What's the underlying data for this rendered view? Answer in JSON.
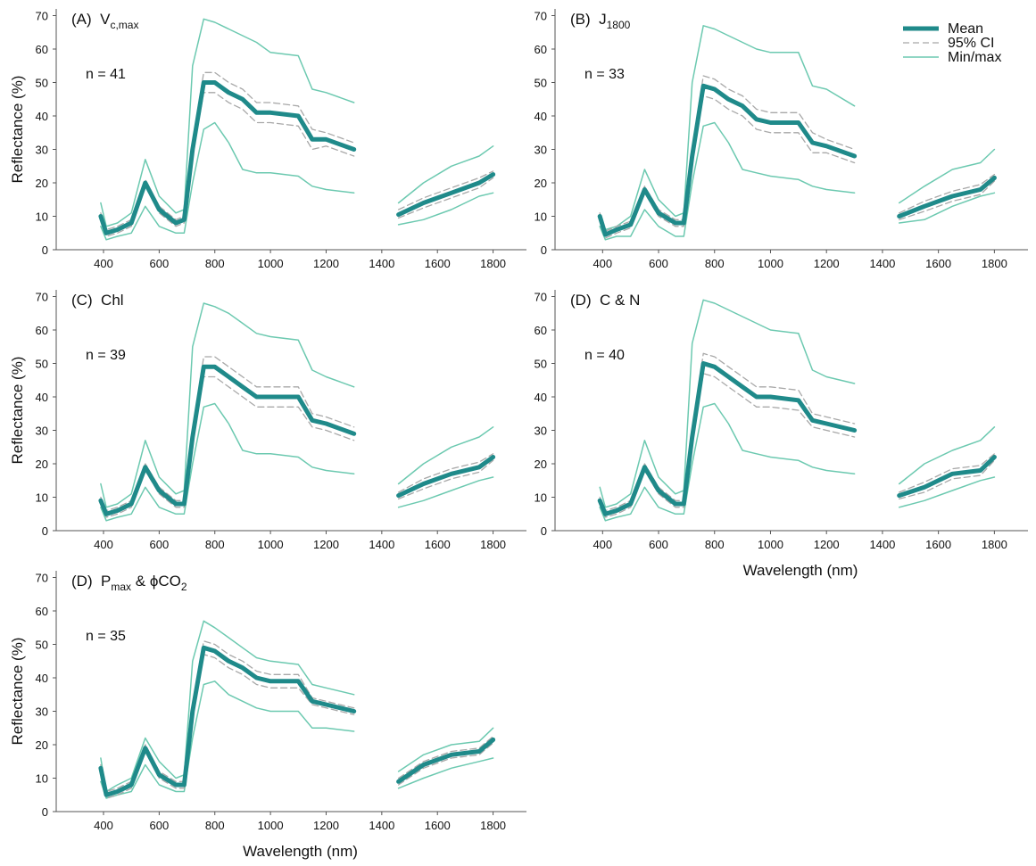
{
  "chart_data": [
    {
      "type": "line",
      "title": [
        "(A)  V",
        {
          "sub": "c,max"
        }
      ],
      "annotation": "n = 41",
      "y_label": "Reflectance (%)",
      "x": [
        390,
        410,
        450,
        500,
        550,
        600,
        660,
        690,
        720,
        760,
        800,
        850,
        900,
        950,
        1000,
        1100,
        1150,
        1200,
        1300,
        1380,
        1460,
        1550,
        1650,
        1750,
        1800
      ],
      "xlim": [
        230,
        1920
      ],
      "ylim": [
        0,
        72
      ],
      "xticks": [
        400,
        600,
        800,
        1000,
        1200,
        1400,
        1600,
        1800
      ],
      "yticks": [
        0,
        10,
        20,
        30,
        40,
        50,
        60,
        70
      ],
      "series": [
        {
          "color": "#6cc9b0",
          "line_width": 1.5,
          "dashed": false,
          "values": [
            14,
            7,
            8,
            11,
            27,
            16,
            11,
            12,
            55,
            69,
            68,
            66,
            64,
            62,
            59,
            58,
            48,
            47,
            44,
            null,
            14,
            20,
            25,
            28,
            31
          ],
          "lower": [
            7,
            3,
            4,
            5,
            13,
            7,
            5,
            5,
            20,
            36,
            38,
            32,
            24,
            23,
            23,
            22,
            19,
            18,
            17,
            null,
            7.5,
            9,
            12,
            16,
            17
          ]
        },
        {
          "color": "#a8a8a8",
          "line_width": 1.3,
          "dashed": true,
          "values": [
            11,
            6,
            7,
            9,
            21,
            13,
            9,
            10,
            32,
            53,
            53,
            50,
            48,
            44,
            44,
            43,
            36,
            35,
            32,
            null,
            12,
            15.5,
            18.5,
            21.5,
            23.5
          ],
          "lower": [
            9,
            4,
            5,
            7,
            19,
            11,
            7,
            8,
            28,
            47,
            47,
            44,
            42,
            38,
            38,
            37,
            30,
            31,
            28,
            null,
            9.5,
            12.5,
            15.5,
            18.5,
            21.5
          ]
        },
        {
          "color": "#1f8a8a",
          "line_width": 5,
          "dashed": false,
          "values": [
            10,
            5,
            6,
            8,
            20,
            12,
            8,
            9,
            30,
            50,
            50,
            47,
            45,
            41,
            41,
            40,
            33,
            33,
            30,
            null,
            10.5,
            14,
            17,
            20,
            22.5
          ]
        }
      ]
    },
    {
      "type": "line",
      "title": [
        "(B)  J",
        {
          "sub": "1800"
        }
      ],
      "annotation": "n = 33",
      "legend": "upper right",
      "x": [
        390,
        410,
        450,
        500,
        550,
        600,
        660,
        690,
        720,
        760,
        800,
        850,
        900,
        950,
        1000,
        1100,
        1150,
        1200,
        1300,
        1380,
        1460,
        1550,
        1650,
        1750,
        1800
      ],
      "xlim": [
        230,
        1920
      ],
      "ylim": [
        0,
        72
      ],
      "xticks": [
        400,
        600,
        800,
        1000,
        1200,
        1400,
        1600,
        1800
      ],
      "yticks": [
        0,
        10,
        20,
        30,
        40,
        50,
        60,
        70
      ],
      "series": [
        {
          "name": "Min/max",
          "color": "#6cc9b0",
          "line_width": 1.5,
          "dashed": false,
          "values": [
            9,
            6,
            7,
            10,
            24,
            15,
            10,
            11,
            50,
            67,
            66,
            64,
            62,
            60,
            59,
            59,
            49,
            48,
            43,
            null,
            14,
            19,
            24,
            26,
            30
          ],
          "lower": [
            7,
            3,
            4,
            4,
            12,
            7,
            4,
            4,
            20,
            37,
            38,
            32,
            24,
            23,
            22,
            21,
            19,
            18,
            17,
            null,
            8,
            9,
            13,
            16,
            17
          ]
        },
        {
          "name": "95% CI",
          "color": "#a8a8a8",
          "line_width": 1.3,
          "dashed": true,
          "values": [
            11,
            5.5,
            7,
            8.5,
            19,
            12,
            9,
            9,
            30,
            52,
            51,
            48,
            46,
            42,
            41,
            41,
            35,
            33,
            30,
            null,
            11,
            14.5,
            17.5,
            19.5,
            22.5
          ],
          "lower": [
            9,
            3.5,
            5,
            6.5,
            17,
            10,
            7,
            7,
            26,
            46,
            45,
            42,
            40,
            36,
            35,
            35,
            29,
            29,
            26,
            null,
            9,
            11.5,
            14.5,
            16.5,
            20.5
          ]
        },
        {
          "name": "Mean",
          "color": "#1f8a8a",
          "line_width": 5,
          "dashed": false,
          "values": [
            10,
            4.5,
            6,
            7.5,
            18,
            11,
            8,
            8,
            28,
            49,
            48,
            45,
            43,
            39,
            38,
            38,
            32,
            31,
            28,
            null,
            10,
            13,
            16,
            18,
            21.5
          ]
        }
      ]
    },
    {
      "type": "line",
      "title": [
        "(C)  Chl"
      ],
      "annotation": "n = 39",
      "y_label": "Reflectance (%)",
      "x": [
        390,
        410,
        450,
        500,
        550,
        600,
        660,
        690,
        720,
        760,
        800,
        850,
        900,
        950,
        1000,
        1100,
        1150,
        1200,
        1300,
        1380,
        1460,
        1550,
        1650,
        1750,
        1800
      ],
      "xlim": [
        230,
        1920
      ],
      "ylim": [
        0,
        72
      ],
      "xticks": [
        400,
        600,
        800,
        1000,
        1200,
        1400,
        1600,
        1800
      ],
      "yticks": [
        0,
        10,
        20,
        30,
        40,
        50,
        60,
        70
      ],
      "series": [
        {
          "color": "#6cc9b0",
          "line_width": 1.5,
          "dashed": false,
          "values": [
            14,
            7,
            8,
            11,
            27,
            16,
            11,
            12,
            55,
            68,
            67,
            65,
            62,
            59,
            58,
            57,
            48,
            46,
            43,
            null,
            14,
            20,
            25,
            28,
            31
          ],
          "lower": [
            7,
            3,
            4,
            5,
            13,
            7,
            5,
            5,
            20,
            37,
            38,
            32,
            24,
            23,
            23,
            22,
            19,
            18,
            17,
            null,
            7,
            9,
            12,
            15,
            16
          ]
        },
        {
          "color": "#a8a8a8",
          "line_width": 1.3,
          "dashed": true,
          "values": [
            10,
            6,
            7,
            9,
            20,
            13,
            9,
            9,
            30,
            52,
            52,
            49,
            46,
            43,
            43,
            43,
            35,
            34,
            31,
            null,
            11.5,
            15.5,
            18.5,
            20.5,
            23
          ],
          "lower": [
            8,
            4,
            5,
            7,
            18,
            11,
            7,
            7,
            26,
            46,
            46,
            43,
            40,
            37,
            37,
            37,
            31,
            30,
            27,
            null,
            9.5,
            12.5,
            15.5,
            17.5,
            21
          ]
        },
        {
          "color": "#1f8a8a",
          "line_width": 5,
          "dashed": false,
          "values": [
            9,
            5,
            6,
            8,
            19,
            12,
            8,
            8,
            28,
            49,
            49,
            46,
            43,
            40,
            40,
            40,
            33,
            32,
            29,
            null,
            10.5,
            14,
            17,
            19,
            22
          ]
        }
      ]
    },
    {
      "type": "line",
      "title": [
        "(D)  C & N"
      ],
      "annotation": "n = 40",
      "x_label": "Wavelength (nm)",
      "x": [
        390,
        410,
        450,
        500,
        550,
        600,
        660,
        690,
        720,
        760,
        800,
        850,
        900,
        950,
        1000,
        1100,
        1150,
        1200,
        1300,
        1380,
        1460,
        1550,
        1650,
        1750,
        1800
      ],
      "xlim": [
        230,
        1920
      ],
      "ylim": [
        0,
        72
      ],
      "xticks": [
        400,
        600,
        800,
        1000,
        1200,
        1400,
        1600,
        1800
      ],
      "yticks": [
        0,
        10,
        20,
        30,
        40,
        50,
        60,
        70
      ],
      "series": [
        {
          "color": "#6cc9b0",
          "line_width": 1.5,
          "dashed": false,
          "values": [
            13,
            7,
            8,
            11,
            27,
            16,
            11,
            12,
            56,
            69,
            68,
            66,
            64,
            62,
            60,
            59,
            48,
            46,
            44,
            null,
            14,
            20,
            24,
            27,
            31
          ],
          "lower": [
            7,
            3,
            4,
            5,
            13,
            7,
            5,
            5,
            20,
            37,
            38,
            32,
            24,
            23,
            22,
            21,
            19,
            18,
            17,
            null,
            7,
            9,
            12,
            15,
            16
          ]
        },
        {
          "color": "#a8a8a8",
          "line_width": 1.3,
          "dashed": true,
          "values": [
            10,
            6,
            7,
            9,
            20,
            13,
            9,
            9,
            30,
            53,
            52,
            49,
            46,
            43,
            43,
            42,
            35,
            34,
            32,
            null,
            11.5,
            14.5,
            18.5,
            19.5,
            23
          ],
          "lower": [
            8,
            4,
            5,
            7,
            18,
            11,
            7,
            7,
            26,
            47,
            46,
            43,
            40,
            37,
            37,
            36,
            31,
            30,
            28,
            null,
            9.5,
            11.5,
            15.5,
            16.5,
            21
          ]
        },
        {
          "color": "#1f8a8a",
          "line_width": 5,
          "dashed": false,
          "values": [
            9,
            5,
            6,
            8,
            19,
            12,
            8,
            8,
            28,
            50,
            49,
            46,
            43,
            40,
            40,
            39,
            33,
            32,
            30,
            null,
            10.5,
            13,
            17,
            18,
            22
          ]
        }
      ]
    },
    {
      "type": "line",
      "title": [
        "(D)  P",
        {
          "sub": "max"
        },
        " & ϕCO",
        {
          "sub": "2"
        }
      ],
      "annotation": "n = 35",
      "y_label": "Reflectance (%)",
      "x_label": "Wavelength (nm)",
      "x": [
        390,
        410,
        450,
        500,
        550,
        600,
        660,
        690,
        720,
        760,
        800,
        850,
        900,
        950,
        1000,
        1100,
        1150,
        1200,
        1300,
        1380,
        1460,
        1550,
        1650,
        1750,
        1800
      ],
      "xlim": [
        230,
        1920
      ],
      "ylim": [
        0,
        72
      ],
      "xticks": [
        400,
        600,
        800,
        1000,
        1200,
        1400,
        1600,
        1800
      ],
      "yticks": [
        0,
        10,
        20,
        30,
        40,
        50,
        60,
        70
      ],
      "series": [
        {
          "color": "#6cc9b0",
          "line_width": 1.5,
          "dashed": false,
          "values": [
            16,
            6,
            8,
            10,
            22,
            15,
            10,
            11,
            45,
            57,
            55,
            52,
            49,
            46,
            45,
            44,
            38,
            37,
            35,
            null,
            12,
            17,
            20,
            21,
            25
          ],
          "lower": [
            9,
            4,
            5,
            6,
            14,
            8,
            6,
            6,
            22,
            38,
            39,
            35,
            33,
            31,
            30,
            30,
            25,
            25,
            24,
            null,
            7,
            10,
            13,
            15,
            16
          ]
        },
        {
          "color": "#a8a8a8",
          "line_width": 1.3,
          "dashed": true,
          "values": [
            14,
            6,
            7,
            9,
            20,
            12,
            9,
            9,
            32,
            51,
            50,
            47,
            45,
            42,
            41,
            41,
            34,
            33,
            31,
            null,
            10,
            15,
            18,
            19,
            22.5
          ],
          "lower": [
            12,
            4,
            5,
            7,
            18,
            10,
            7,
            7,
            28,
            47,
            46,
            43,
            41,
            38,
            37,
            37,
            32,
            31,
            29,
            null,
            8,
            13,
            16,
            17,
            20.5
          ]
        },
        {
          "color": "#1f8a8a",
          "line_width": 5,
          "dashed": false,
          "values": [
            13,
            5,
            6,
            8,
            19,
            11,
            8,
            8,
            30,
            49,
            48,
            45,
            43,
            40,
            39,
            39,
            33,
            32,
            30,
            null,
            9,
            14,
            17,
            18,
            21.5
          ]
        }
      ]
    }
  ]
}
